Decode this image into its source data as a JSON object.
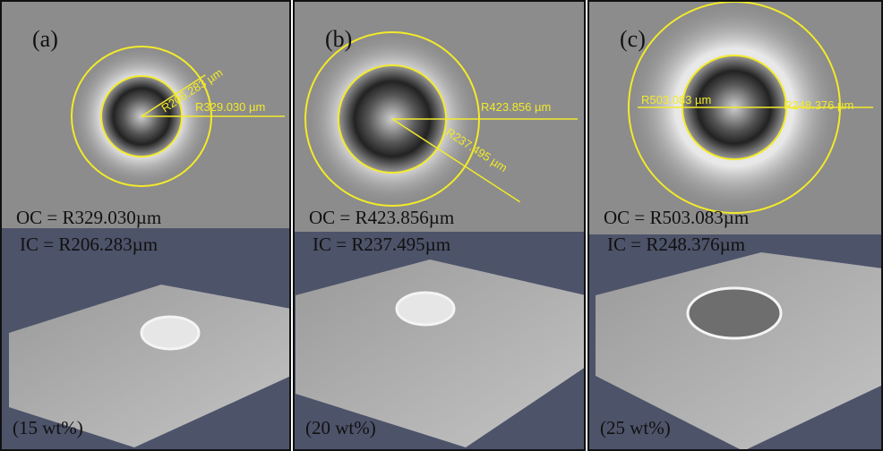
{
  "panels": [
    {
      "label": "(a)",
      "inner_measure": "R206.283 µm",
      "outer_measure": "R329.030 µm",
      "oc": "OC = R329.030µm",
      "ic": "IC = R206.283µm",
      "concentration": "(15 wt%)"
    },
    {
      "label": "(b)",
      "inner_measure": "R237.495 µm",
      "outer_measure": "R423.856 µm",
      "oc": "OC = R423.856µm",
      "ic": "IC = R237.495µm",
      "concentration": "(20 wt%)"
    },
    {
      "label": "(c)",
      "inner_measure": "R248.376 µm",
      "outer_measure": "R503.083 µm",
      "oc": "OC = R503.083µm",
      "ic": "IC = R248.376µm",
      "concentration": "(25 wt%)"
    }
  ]
}
